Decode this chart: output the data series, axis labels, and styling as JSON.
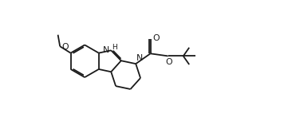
{
  "background": "#ffffff",
  "line_color": "#1a1a1a",
  "line_width": 1.3,
  "font_size": 7.8,
  "font_size_h": 6.5,
  "figsize": [
    3.61,
    1.52
  ],
  "dpi": 100,
  "xlim": [
    -0.5,
    10.5
  ],
  "ylim": [
    0.0,
    4.2
  ],
  "bcx": 1.9,
  "bcy": 2.1,
  "br": 0.8
}
